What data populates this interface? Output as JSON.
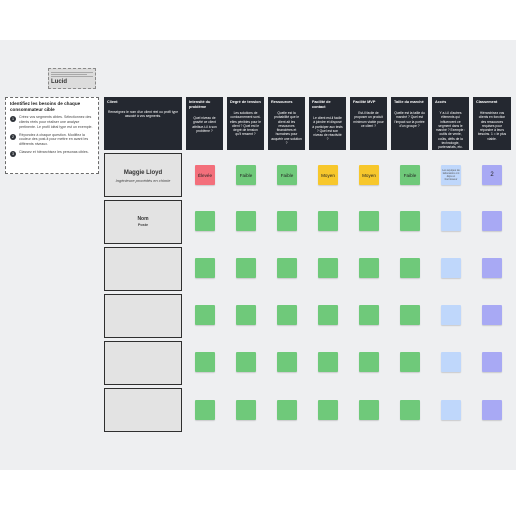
{
  "brand": {
    "logo_text": "Lucid"
  },
  "instructions": {
    "title": "Identifiez les besoins de chaque consommateur cible",
    "steps": [
      {
        "num": "1",
        "text": "Créez vos segments cibles. Sélectionnez des clients réels pour réaliser une analyse pertinente. Le profil idéal type est un exemple."
      },
      {
        "num": "2",
        "text": "Répondez à chaque question. Modifiez la couleur des post-it pour mettre en avant les différents niveaux."
      },
      {
        "num": "3",
        "text": "Classez et hiérarchisez les personas cibles."
      }
    ]
  },
  "columns": [
    {
      "label": "Client",
      "desc": "Renseignez le nom d'un client réel ou profil type associé à vos segments."
    },
    {
      "label": "Intensité du problème",
      "desc": "Quel niveau de gravité ce client attribue-t-il à son problème ?"
    },
    {
      "label": "Degré de tension",
      "desc": "Les solutions de contournement sont-elles pénibles pour le client ? Quel est le degré de tension qu'il ressent ?"
    },
    {
      "label": "Ressources",
      "desc": "Quelle est la probabilité que le client ait les ressources financières et humaines pour acquérir une solution ?"
    },
    {
      "label": "Facilité de contact",
      "desc": "Le client est-il facile à joindre et disposé à participer aux tests ? Quel est son niveau de réactivité ?"
    },
    {
      "label": "Facilité MVP",
      "desc": "Est-il facile de proposer un produit minimum viable pour ce client ?"
    },
    {
      "label": "Taille du marché",
      "desc": "Quelle est la taille du marché ? Quel est l'impact sur la portée d'un groupe ?"
    },
    {
      "label": "Accès",
      "desc": "Y a-t-il d'autres éléments qui influencent ce segment dans le marché ? Exemple : outils de vente, coûts, défis de la technologie, partenariats, etc."
    },
    {
      "label": "Classement",
      "desc": "Hiérarchisez vos clients en fonction des ressources requises pour répondre à leurs besoins. 1 = le plus viable."
    }
  ],
  "rows": [
    {
      "name": "Maggie Lloyd",
      "role": "Ingénieure procédés en chimie",
      "cells": [
        {
          "text": "Élevée",
          "color": "#f36f7b"
        },
        {
          "text": "Faible",
          "color": "#6fc97a"
        },
        {
          "text": "Faible",
          "color": "#6fc97a"
        },
        {
          "text": "Moyen",
          "color": "#f7c72c"
        },
        {
          "text": "Moyen",
          "color": "#f7c72c"
        },
        {
          "text": "Faible",
          "color": "#6fc97a"
        },
        {
          "text": "Les équipes de laboratoire ont déjà un fournisseur",
          "color": "#bfd7fb",
          "tiny": true
        },
        {
          "text": "2",
          "color": "#a8a9f4",
          "num": true
        }
      ]
    },
    {
      "name": "Nom",
      "role": "Poste",
      "cells": [
        {
          "text": "",
          "color": "#6fc97a"
        },
        {
          "text": "",
          "color": "#6fc97a"
        },
        {
          "text": "",
          "color": "#6fc97a"
        },
        {
          "text": "",
          "color": "#6fc97a"
        },
        {
          "text": "",
          "color": "#6fc97a"
        },
        {
          "text": "",
          "color": "#6fc97a"
        },
        {
          "text": "",
          "color": "#bfd7fb"
        },
        {
          "text": "",
          "color": "#a8a9f4"
        }
      ]
    },
    {
      "name": "",
      "role": "",
      "cells": [
        {
          "text": "",
          "color": "#6fc97a"
        },
        {
          "text": "",
          "color": "#6fc97a"
        },
        {
          "text": "",
          "color": "#6fc97a"
        },
        {
          "text": "",
          "color": "#6fc97a"
        },
        {
          "text": "",
          "color": "#6fc97a"
        },
        {
          "text": "",
          "color": "#6fc97a"
        },
        {
          "text": "",
          "color": "#bfd7fb"
        },
        {
          "text": "",
          "color": "#a8a9f4"
        }
      ]
    },
    {
      "name": "",
      "role": "",
      "cells": [
        {
          "text": "",
          "color": "#6fc97a"
        },
        {
          "text": "",
          "color": "#6fc97a"
        },
        {
          "text": "",
          "color": "#6fc97a"
        },
        {
          "text": "",
          "color": "#6fc97a"
        },
        {
          "text": "",
          "color": "#6fc97a"
        },
        {
          "text": "",
          "color": "#6fc97a"
        },
        {
          "text": "",
          "color": "#bfd7fb"
        },
        {
          "text": "",
          "color": "#a8a9f4"
        }
      ]
    },
    {
      "name": "",
      "role": "",
      "cells": [
        {
          "text": "",
          "color": "#6fc97a"
        },
        {
          "text": "",
          "color": "#6fc97a"
        },
        {
          "text": "",
          "color": "#6fc97a"
        },
        {
          "text": "",
          "color": "#6fc97a"
        },
        {
          "text": "",
          "color": "#6fc97a"
        },
        {
          "text": "",
          "color": "#6fc97a"
        },
        {
          "text": "",
          "color": "#bfd7fb"
        },
        {
          "text": "",
          "color": "#a8a9f4"
        }
      ]
    },
    {
      "name": "",
      "role": "",
      "cells": [
        {
          "text": "",
          "color": "#6fc97a"
        },
        {
          "text": "",
          "color": "#6fc97a"
        },
        {
          "text": "",
          "color": "#6fc97a"
        },
        {
          "text": "",
          "color": "#6fc97a"
        },
        {
          "text": "",
          "color": "#6fc97a"
        },
        {
          "text": "",
          "color": "#6fc97a"
        },
        {
          "text": "",
          "color": "#bfd7fb"
        },
        {
          "text": "",
          "color": "#a8a9f4"
        }
      ]
    }
  ]
}
